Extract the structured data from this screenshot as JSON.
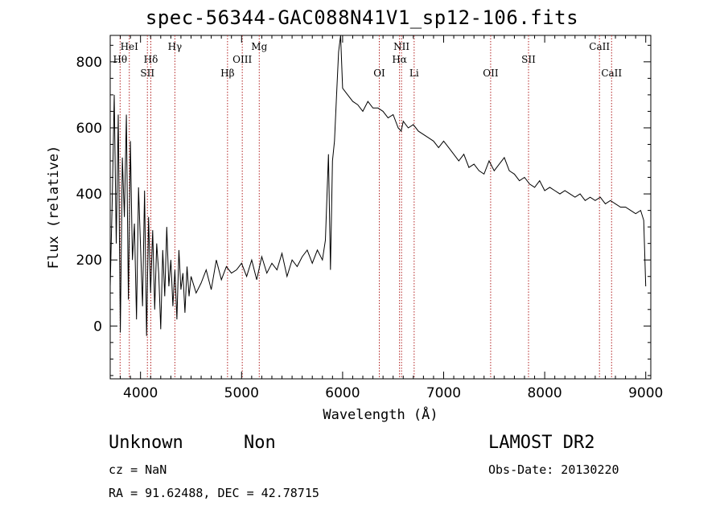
{
  "chart_data": {
    "type": "line",
    "title": "spec-56344-GAC088N41V1_sp12-106.fits",
    "xlabel": "Wavelength (Å)",
    "ylabel": "Flux (relative)",
    "xlim": [
      3700,
      9050
    ],
    "ylim": [
      -160,
      880
    ],
    "x_ticks": [
      4000,
      5000,
      6000,
      7000,
      8000,
      9000
    ],
    "y_ticks": [
      0,
      200,
      400,
      600,
      800
    ],
    "grid": false,
    "series": [
      {
        "x": [
          3700,
          3720,
          3740,
          3760,
          3780,
          3800,
          3820,
          3840,
          3860,
          3880,
          3900,
          3920,
          3940,
          3960,
          3980,
          4000,
          4020,
          4040,
          4060,
          4080,
          4100,
          4120,
          4140,
          4160,
          4180,
          4200,
          4220,
          4240,
          4260,
          4280,
          4300,
          4320,
          4340,
          4360,
          4380,
          4400,
          4420,
          4440,
          4460,
          4480,
          4500,
          4550,
          4600,
          4650,
          4700,
          4750,
          4800,
          4850,
          4900,
          4950,
          5000,
          5050,
          5100,
          5150,
          5200,
          5250,
          5300,
          5350,
          5400,
          5450,
          5500,
          5550,
          5600,
          5650,
          5700,
          5750,
          5800,
          5830,
          5860,
          5880,
          5900,
          5920,
          5940,
          5960,
          5980,
          6000,
          6050,
          6100,
          6150,
          6200,
          6250,
          6300,
          6350,
          6400,
          6450,
          6500,
          6550,
          6580,
          6600,
          6650,
          6700,
          6750,
          6800,
          6850,
          6900,
          6950,
          7000,
          7050,
          7100,
          7150,
          7200,
          7250,
          7300,
          7350,
          7400,
          7450,
          7500,
          7550,
          7600,
          7650,
          7700,
          7750,
          7800,
          7850,
          7900,
          7950,
          8000,
          8050,
          8100,
          8150,
          8200,
          8250,
          8300,
          8350,
          8400,
          8450,
          8500,
          8550,
          8600,
          8650,
          8700,
          8750,
          8800,
          8850,
          8900,
          8950,
          8980,
          9000
        ],
        "y": [
          120,
          380,
          700,
          250,
          640,
          -20,
          510,
          330,
          640,
          80,
          560,
          200,
          310,
          20,
          420,
          240,
          60,
          410,
          -30,
          330,
          100,
          290,
          50,
          250,
          160,
          -10,
          230,
          90,
          300,
          120,
          200,
          60,
          170,
          20,
          230,
          110,
          160,
          40,
          180,
          90,
          150,
          100,
          130,
          170,
          110,
          200,
          140,
          180,
          160,
          170,
          190,
          150,
          200,
          140,
          210,
          160,
          190,
          170,
          220,
          150,
          200,
          180,
          210,
          230,
          190,
          230,
          200,
          260,
          520,
          170,
          500,
          560,
          700,
          830,
          880,
          720,
          700,
          680,
          670,
          650,
          680,
          660,
          660,
          650,
          630,
          640,
          600,
          590,
          620,
          600,
          610,
          590,
          580,
          570,
          560,
          540,
          560,
          540,
          520,
          500,
          520,
          480,
          490,
          470,
          460,
          500,
          470,
          490,
          510,
          470,
          460,
          440,
          450,
          430,
          420,
          440,
          410,
          420,
          410,
          400,
          410,
          400,
          390,
          400,
          380,
          390,
          380,
          390,
          370,
          380,
          370,
          360,
          360,
          350,
          340,
          350,
          320,
          120
        ]
      }
    ],
    "annotations": {
      "lines_top": [
        {
          "label": "HeI",
          "x": 3889,
          "row": 1
        },
        {
          "label": "Hθ",
          "x": 3798,
          "row": 2
        },
        {
          "label": "Hδ",
          "x": 4102,
          "row": 2
        },
        {
          "label": "SII",
          "x": 4068,
          "row": 3
        },
        {
          "label": "Hγ",
          "x": 4340,
          "row": 1
        },
        {
          "label": "Hβ",
          "x": 4861,
          "row": 3
        },
        {
          "label": "OIII",
          "x": 5007,
          "row": 2
        },
        {
          "label": "Mg",
          "x": 5175,
          "row": 1
        },
        {
          "label": "OI",
          "x": 6363,
          "row": 3
        },
        {
          "label": "NII",
          "x": 6583,
          "row": 1
        },
        {
          "label": "Hα",
          "x": 6563,
          "row": 2
        },
        {
          "label": "Li",
          "x": 6708,
          "row": 3
        },
        {
          "label": "OII",
          "x": 7465,
          "row": 3
        },
        {
          "label": "SII",
          "x": 7840,
          "row": 2
        },
        {
          "label": "CaII",
          "x": 8542,
          "row": 1
        },
        {
          "label": "CaII",
          "x": 8662,
          "row": 3
        }
      ],
      "line_color": "#b22222"
    }
  },
  "info": {
    "class": "Unknown",
    "subclass": "Non",
    "survey": "LAMOST DR2",
    "cz": "cz = NaN",
    "obs_date": "Obs-Date: 20130220",
    "coords": "RA =  91.62488, DEC =  42.78715"
  }
}
